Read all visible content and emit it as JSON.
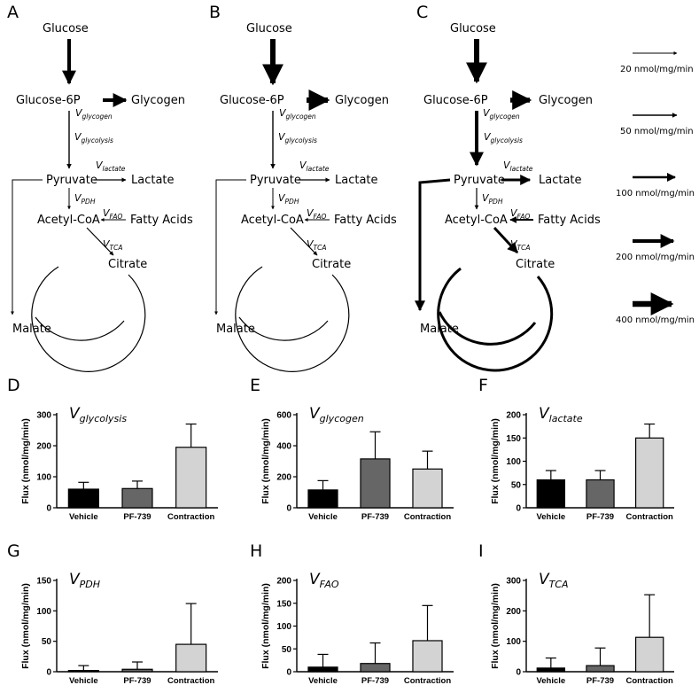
{
  "panel_letters": [
    "A",
    "B",
    "C",
    "D",
    "E",
    "F",
    "G",
    "H",
    "I"
  ],
  "pathway": {
    "nodes": {
      "glucose": "Glucose",
      "g6p": "Glucose-6P",
      "glycogen": "Glycogen",
      "pyruvate": "Pyruvate",
      "lactate": "Lactate",
      "acetylcoa": "Acetyl-CoA",
      "fattyacids": "Fatty Acids",
      "citrate": "Citrate",
      "malate": "Malate"
    },
    "fluxes": {
      "glycogen": {
        "v": "V",
        "sub": "glycogen"
      },
      "glycolysis": {
        "v": "V",
        "sub": "glycolysis"
      },
      "lactate": {
        "v": "V",
        "sub": "lactate"
      },
      "pdh": {
        "v": "V",
        "sub": "PDH"
      },
      "fao": {
        "v": "V",
        "sub": "FAO"
      },
      "tca": {
        "v": "V",
        "sub": "TCA"
      }
    }
  },
  "legend": [
    {
      "label": "20 nmol/mg/min",
      "weight": 20
    },
    {
      "label": "50 nmol/mg/min",
      "weight": 50
    },
    {
      "label": "100 nmol/mg/min",
      "weight": 100
    },
    {
      "label": "200 nmol/mg/min",
      "weight": 200
    },
    {
      "label": "400 nmol/mg/min",
      "weight": 400
    }
  ],
  "colors": {
    "vehicle": "#000000",
    "pf739": "#666666",
    "contraction": "#d3d3d3"
  },
  "chart_data": [
    {
      "type": "bar",
      "title": "V",
      "title_sub": "glycolysis",
      "ylabel": "Flux  (nmol/mg/min)",
      "categories": [
        "Vehicle",
        "PF-739",
        "Contraction"
      ],
      "values": [
        60,
        62,
        195
      ],
      "errors": [
        22,
        24,
        75
      ],
      "ylim": [
        0,
        300
      ],
      "yticks": [
        0,
        100,
        200,
        300
      ]
    },
    {
      "type": "bar",
      "title": "V",
      "title_sub": "glycogen",
      "ylabel": "Flux  (nmol/mg/min)",
      "categories": [
        "Vehicle",
        "PF-739",
        "Contraction"
      ],
      "values": [
        115,
        315,
        250
      ],
      "errors": [
        60,
        175,
        115
      ],
      "ylim": [
        0,
        600
      ],
      "yticks": [
        0,
        200,
        400,
        600
      ]
    },
    {
      "type": "bar",
      "title": "V",
      "title_sub": "lactate",
      "ylabel": "Flux  (nmol/mg/min)",
      "categories": [
        "Vehicle",
        "PF-739",
        "Contraction"
      ],
      "values": [
        60,
        60,
        150
      ],
      "errors": [
        20,
        20,
        30
      ],
      "ylim": [
        0,
        200
      ],
      "yticks": [
        0,
        50,
        100,
        150,
        200
      ]
    },
    {
      "type": "bar",
      "title": "V",
      "title_sub": "PDH",
      "ylabel": "Flux  (nmol/mg/min)",
      "categories": [
        "Vehicle",
        "PF-739",
        "Contraction"
      ],
      "values": [
        2,
        4,
        45
      ],
      "errors": [
        8,
        12,
        67
      ],
      "ylim": [
        0,
        150
      ],
      "yticks": [
        0,
        50,
        100,
        150
      ]
    },
    {
      "type": "bar",
      "title": "V",
      "title_sub": "FAO",
      "ylabel": "Flux  (nmol/mg/min)",
      "categories": [
        "Vehicle",
        "PF-739",
        "Contraction"
      ],
      "values": [
        10,
        18,
        68
      ],
      "errors": [
        28,
        45,
        77
      ],
      "ylim": [
        0,
        200
      ],
      "yticks": [
        0,
        50,
        100,
        150,
        200
      ]
    },
    {
      "type": "bar",
      "title": "V",
      "title_sub": "TCA",
      "ylabel": "Flux  (nmol/mg/min)",
      "categories": [
        "Vehicle",
        "PF-739",
        "Contraction"
      ],
      "values": [
        12,
        20,
        113
      ],
      "errors": [
        33,
        58,
        140
      ],
      "ylim": [
        0,
        300
      ],
      "yticks": [
        0,
        100,
        200,
        300
      ]
    }
  ]
}
